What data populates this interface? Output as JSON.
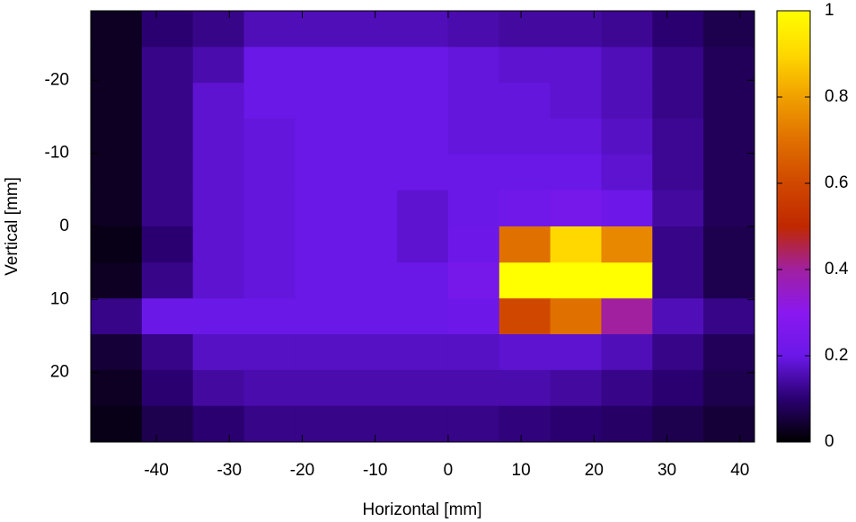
{
  "chart_data": {
    "type": "heatmap",
    "xlabel": "Horizontal [mm]",
    "ylabel": "Vertical [mm]",
    "x": [
      -45.5,
      -38.5,
      -31.5,
      -24.5,
      -17.5,
      -10.5,
      -3.5,
      3.5,
      10.5,
      17.5,
      24.5,
      31.5,
      38.5
    ],
    "y": [
      -27,
      -22.1,
      -17.2,
      -12.3,
      -7.4,
      -2.5,
      2.5,
      7.4,
      12.3,
      17.2,
      22.1,
      27
    ],
    "z": [
      [
        0.03,
        0.1,
        0.12,
        0.16,
        0.16,
        0.16,
        0.16,
        0.15,
        0.14,
        0.14,
        0.13,
        0.1,
        0.07
      ],
      [
        0.03,
        0.12,
        0.15,
        0.2,
        0.2,
        0.2,
        0.2,
        0.19,
        0.18,
        0.18,
        0.16,
        0.12,
        0.08
      ],
      [
        0.03,
        0.12,
        0.18,
        0.2,
        0.2,
        0.2,
        0.2,
        0.19,
        0.19,
        0.18,
        0.16,
        0.12,
        0.08
      ],
      [
        0.03,
        0.12,
        0.18,
        0.19,
        0.2,
        0.2,
        0.2,
        0.19,
        0.19,
        0.19,
        0.17,
        0.13,
        0.08
      ],
      [
        0.03,
        0.12,
        0.18,
        0.19,
        0.2,
        0.2,
        0.2,
        0.2,
        0.2,
        0.2,
        0.18,
        0.13,
        0.08
      ],
      [
        0.03,
        0.12,
        0.18,
        0.19,
        0.2,
        0.2,
        0.18,
        0.2,
        0.22,
        0.24,
        0.21,
        0.14,
        0.08
      ],
      [
        0.02,
        0.1,
        0.18,
        0.19,
        0.2,
        0.2,
        0.18,
        0.21,
        0.7,
        0.9,
        0.75,
        0.12,
        0.07
      ],
      [
        0.03,
        0.12,
        0.18,
        0.19,
        0.2,
        0.2,
        0.2,
        0.24,
        1,
        1,
        1,
        0.12,
        0.07
      ],
      [
        0.12,
        0.2,
        0.2,
        0.2,
        0.2,
        0.2,
        0.2,
        0.21,
        0.6,
        0.7,
        0.4,
        0.16,
        0.12
      ],
      [
        0.05,
        0.12,
        0.17,
        0.17,
        0.17,
        0.17,
        0.17,
        0.17,
        0.18,
        0.18,
        0.16,
        0.12,
        0.08
      ],
      [
        0.03,
        0.1,
        0.14,
        0.15,
        0.15,
        0.15,
        0.15,
        0.15,
        0.15,
        0.14,
        0.12,
        0.1,
        0.07
      ],
      [
        0.02,
        0.07,
        0.1,
        0.12,
        0.12,
        0.12,
        0.12,
        0.12,
        0.11,
        0.1,
        0.09,
        0.07,
        0.05
      ]
    ],
    "xlim": [
      -49,
      42
    ],
    "ylim": [
      -29.5,
      29.5
    ],
    "xticks": [
      -40,
      -30,
      -20,
      -10,
      0,
      10,
      20,
      30,
      40
    ],
    "yticks": [
      -20,
      -10,
      0,
      10,
      20
    ],
    "clim": [
      0,
      1
    ],
    "cticks": [
      0,
      0.2,
      0.4,
      0.6,
      0.8,
      1
    ],
    "colormap": [
      "#000000",
      "#2a0070",
      "#6a18e8",
      "#8a18f0",
      "#a020a0",
      "#c02800",
      "#d04800",
      "#e07000",
      "#f0a000",
      "#ffd800",
      "#ffff00"
    ]
  }
}
